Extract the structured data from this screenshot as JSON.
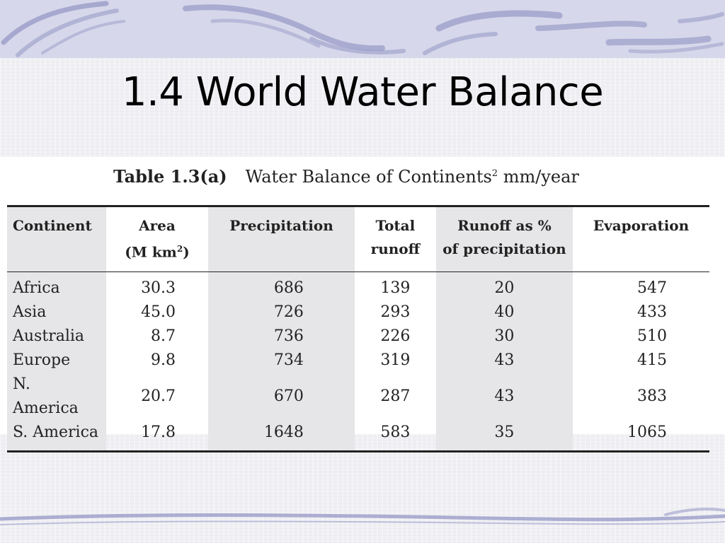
{
  "slide": {
    "title": "1.4 World Water Balance"
  },
  "table": {
    "caption_label": "Table 1.3(a)",
    "caption_text": "Water Balance of Continents",
    "caption_superscript": "2",
    "caption_units": " mm/year",
    "headers": {
      "continent": "Continent",
      "area_line1": "Area",
      "area_line2_prefix": "(M km",
      "area_line2_sup": "2",
      "area_line2_suffix": ")",
      "precipitation": "Precipitation",
      "runoff_line1": "Total",
      "runoff_line2": "runoff",
      "runoff_pct_line1": "Runoff as %",
      "runoff_pct_line2": "of precipitation",
      "evaporation": "Evaporation"
    },
    "rows": [
      {
        "continent": "Africa",
        "area": "30.3",
        "precipitation": "686",
        "total_runoff": "139",
        "runoff_pct": "20",
        "evaporation": "547"
      },
      {
        "continent": "Asia",
        "area": "45.0",
        "precipitation": "726",
        "total_runoff": "293",
        "runoff_pct": "40",
        "evaporation": "433"
      },
      {
        "continent": "Australia",
        "area": "8.7",
        "precipitation": "736",
        "total_runoff": "226",
        "runoff_pct": "30",
        "evaporation": "510"
      },
      {
        "continent": "Europe",
        "area": "9.8",
        "precipitation": "734",
        "total_runoff": "319",
        "runoff_pct": "43",
        "evaporation": "415"
      },
      {
        "continent": "N. America",
        "area": "20.7",
        "precipitation": "670",
        "total_runoff": "287",
        "runoff_pct": "43",
        "evaporation": "383"
      },
      {
        "continent": "S. America",
        "area": "17.8",
        "precipitation": "1648",
        "total_runoff": "583",
        "runoff_pct": "35",
        "evaporation": "1065"
      }
    ]
  },
  "colors": {
    "band": "#d6d7ea",
    "swirl": "#9a9cc8",
    "shade": "#e6e6e8"
  }
}
